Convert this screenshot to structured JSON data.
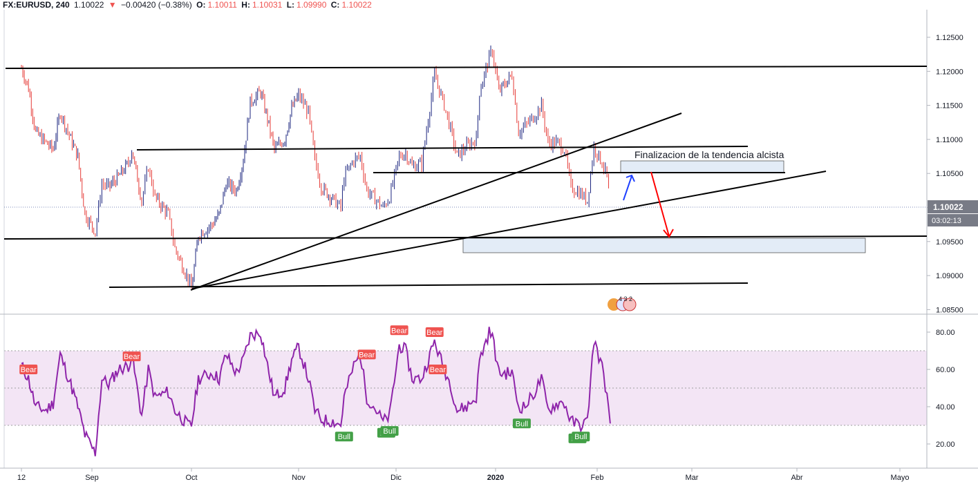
{
  "header": {
    "symbol": "FX:EURUSD, 240",
    "last": "1.10022",
    "arrow": "▼",
    "change": "−0.00420 (−0.38%)",
    "o_label": "O:",
    "o_value": "1.10011",
    "h_label": "H:",
    "h_value": "1.10031",
    "l_label": "L:",
    "l_value": "1.09990",
    "c_label": "C:",
    "c_value": "1.10022"
  },
  "chart_data": [
    {
      "type": "candlestick",
      "title": "",
      "y_ticks": [
        "1.12500",
        "1.12000",
        "1.11500",
        "1.11000",
        "1.10500",
        "1.10000",
        "1.09500",
        "1.09000",
        "1.08500"
      ],
      "ylim": [
        1.0845,
        1.129
      ],
      "x_ticks": [
        "12",
        "Sep",
        "Oct",
        "Nov",
        "Dic",
        "2020",
        "Feb",
        "Mar",
        "Abr",
        "Mayo"
      ],
      "last_price": "1.10022",
      "countdown": "03:02:13",
      "series": [
        {
          "values": [
            {
              "d": "2019-08-12",
              "c": 1.1205
            },
            {
              "d": "2019-08-14",
              "c": 1.1175
            },
            {
              "d": "2019-08-16",
              "c": 1.111
            },
            {
              "d": "2019-08-19",
              "c": 1.1095
            },
            {
              "d": "2019-08-21",
              "c": 1.1085
            },
            {
              "d": "2019-08-23",
              "c": 1.114
            },
            {
              "d": "2019-08-26",
              "c": 1.11
            },
            {
              "d": "2019-08-28",
              "c": 1.1075
            },
            {
              "d": "2019-08-30",
              "c": 1.099
            },
            {
              "d": "2019-09-02",
              "c": 1.0965
            },
            {
              "d": "2019-09-04",
              "c": 1.1035
            },
            {
              "d": "2019-09-06",
              "c": 1.103
            },
            {
              "d": "2019-09-09",
              "c": 1.1045
            },
            {
              "d": "2019-09-12",
              "c": 1.1065
            },
            {
              "d": "2019-09-13",
              "c": 1.1085
            },
            {
              "d": "2019-09-16",
              "c": 1.101
            },
            {
              "d": "2019-09-18",
              "c": 1.106
            },
            {
              "d": "2019-09-20",
              "c": 1.1015
            },
            {
              "d": "2019-09-24",
              "c": 1.099
            },
            {
              "d": "2019-09-26",
              "c": 1.094
            },
            {
              "d": "2019-09-30",
              "c": 1.0895
            },
            {
              "d": "2019-10-01",
              "c": 1.088
            },
            {
              "d": "2019-10-03",
              "c": 1.096
            },
            {
              "d": "2019-10-07",
              "c": 1.0975
            },
            {
              "d": "2019-10-09",
              "c": 1.099
            },
            {
              "d": "2019-10-11",
              "c": 1.1035
            },
            {
              "d": "2019-10-14",
              "c": 1.1025
            },
            {
              "d": "2019-10-16",
              "c": 1.107
            },
            {
              "d": "2019-10-18",
              "c": 1.1155
            },
            {
              "d": "2019-10-21",
              "c": 1.117
            },
            {
              "d": "2019-10-23",
              "c": 1.113
            },
            {
              "d": "2019-10-25",
              "c": 1.1085
            },
            {
              "d": "2019-10-28",
              "c": 1.11
            },
            {
              "d": "2019-10-30",
              "c": 1.1145
            },
            {
              "d": "2019-11-01",
              "c": 1.1165
            },
            {
              "d": "2019-11-04",
              "c": 1.114
            },
            {
              "d": "2019-11-06",
              "c": 1.107
            },
            {
              "d": "2019-11-08",
              "c": 1.103
            },
            {
              "d": "2019-11-12",
              "c": 1.101
            },
            {
              "d": "2019-11-14",
              "c": 1.1
            },
            {
              "d": "2019-11-15",
              "c": 1.1045
            },
            {
              "d": "2019-11-18",
              "c": 1.107
            },
            {
              "d": "2019-11-20",
              "c": 1.1075
            },
            {
              "d": "2019-11-22",
              "c": 1.1025
            },
            {
              "d": "2019-11-25",
              "c": 1.101
            },
            {
              "d": "2019-11-27",
              "c": 1.1
            },
            {
              "d": "2019-11-29",
              "c": 1.1015
            },
            {
              "d": "2019-12-02",
              "c": 1.1075
            },
            {
              "d": "2019-12-04",
              "c": 1.108
            },
            {
              "d": "2019-12-06",
              "c": 1.106
            },
            {
              "d": "2019-12-09",
              "c": 1.1065
            },
            {
              "d": "2019-12-11",
              "c": 1.113
            },
            {
              "d": "2019-12-13",
              "c": 1.1195
            },
            {
              "d": "2019-12-16",
              "c": 1.115
            },
            {
              "d": "2019-12-18",
              "c": 1.1115
            },
            {
              "d": "2019-12-20",
              "c": 1.1075
            },
            {
              "d": "2019-12-23",
              "c": 1.109
            },
            {
              "d": "2019-12-26",
              "c": 1.11
            },
            {
              "d": "2019-12-27",
              "c": 1.117
            },
            {
              "d": "2019-12-30",
              "c": 1.122
            },
            {
              "d": "2019-12-31",
              "c": 1.123
            },
            {
              "d": "2020-01-02",
              "c": 1.117
            },
            {
              "d": "2020-01-06",
              "c": 1.1195
            },
            {
              "d": "2020-01-08",
              "c": 1.111
            },
            {
              "d": "2020-01-10",
              "c": 1.112
            },
            {
              "d": "2020-01-13",
              "c": 1.1135
            },
            {
              "d": "2020-01-15",
              "c": 1.115
            },
            {
              "d": "2020-01-17",
              "c": 1.1095
            },
            {
              "d": "2020-01-20",
              "c": 1.1095
            },
            {
              "d": "2020-01-22",
              "c": 1.1085
            },
            {
              "d": "2020-01-24",
              "c": 1.103
            },
            {
              "d": "2020-01-27",
              "c": 1.102
            },
            {
              "d": "2020-01-29",
              "c": 1.101
            },
            {
              "d": "2020-01-31",
              "c": 1.109
            },
            {
              "d": "2020-02-03",
              "c": 1.106
            },
            {
              "d": "2020-02-04",
              "c": 1.1045
            },
            {
              "d": "2020-02-05",
              "c": 1.1002
            }
          ]
        }
      ],
      "annotation": "Finalizacion de la tendencia alcista"
    },
    {
      "type": "line",
      "name": "",
      "y_ticks": [
        "80.00",
        "60.00",
        "40.00",
        "20.00"
      ],
      "ylim": [
        10,
        86
      ],
      "band": [
        30,
        70
      ],
      "midline": 50,
      "series": [
        {
          "values": [
            {
              "d": "2019-08-12",
              "v": 62
            },
            {
              "d": "2019-08-14",
              "v": 55
            },
            {
              "d": "2019-08-16",
              "v": 40
            },
            {
              "d": "2019-08-19",
              "v": 38
            },
            {
              "d": "2019-08-21",
              "v": 42
            },
            {
              "d": "2019-08-23",
              "v": 68
            },
            {
              "d": "2019-08-26",
              "v": 52
            },
            {
              "d": "2019-08-28",
              "v": 40
            },
            {
              "d": "2019-08-30",
              "v": 25
            },
            {
              "d": "2019-09-02",
              "v": 15
            },
            {
              "d": "2019-09-04",
              "v": 55
            },
            {
              "d": "2019-09-06",
              "v": 52
            },
            {
              "d": "2019-09-09",
              "v": 60
            },
            {
              "d": "2019-09-12",
              "v": 62
            },
            {
              "d": "2019-09-13",
              "v": 68
            },
            {
              "d": "2019-09-16",
              "v": 35
            },
            {
              "d": "2019-09-18",
              "v": 60
            },
            {
              "d": "2019-09-20",
              "v": 45
            },
            {
              "d": "2019-09-24",
              "v": 48
            },
            {
              "d": "2019-09-26",
              "v": 38
            },
            {
              "d": "2019-09-30",
              "v": 30
            },
            {
              "d": "2019-10-01",
              "v": 30
            },
            {
              "d": "2019-10-03",
              "v": 55
            },
            {
              "d": "2019-10-07",
              "v": 58
            },
            {
              "d": "2019-10-09",
              "v": 55
            },
            {
              "d": "2019-10-11",
              "v": 68
            },
            {
              "d": "2019-10-14",
              "v": 58
            },
            {
              "d": "2019-10-16",
              "v": 65
            },
            {
              "d": "2019-10-18",
              "v": 78
            },
            {
              "d": "2019-10-21",
              "v": 80
            },
            {
              "d": "2019-10-23",
              "v": 62
            },
            {
              "d": "2019-10-25",
              "v": 45
            },
            {
              "d": "2019-10-28",
              "v": 50
            },
            {
              "d": "2019-10-30",
              "v": 65
            },
            {
              "d": "2019-11-01",
              "v": 72
            },
            {
              "d": "2019-11-04",
              "v": 55
            },
            {
              "d": "2019-11-06",
              "v": 38
            },
            {
              "d": "2019-11-08",
              "v": 33
            },
            {
              "d": "2019-11-12",
              "v": 32
            },
            {
              "d": "2019-11-14",
              "v": 30
            },
            {
              "d": "2019-11-15",
              "v": 45
            },
            {
              "d": "2019-11-18",
              "v": 62
            },
            {
              "d": "2019-11-20",
              "v": 68
            },
            {
              "d": "2019-11-22",
              "v": 45
            },
            {
              "d": "2019-11-25",
              "v": 38
            },
            {
              "d": "2019-11-27",
              "v": 32
            },
            {
              "d": "2019-11-29",
              "v": 35
            },
            {
              "d": "2019-12-02",
              "v": 73
            },
            {
              "d": "2019-12-04",
              "v": 70
            },
            {
              "d": "2019-12-06",
              "v": 55
            },
            {
              "d": "2019-12-09",
              "v": 55
            },
            {
              "d": "2019-12-11",
              "v": 65
            },
            {
              "d": "2019-12-13",
              "v": 75
            },
            {
              "d": "2019-12-16",
              "v": 60
            },
            {
              "d": "2019-12-18",
              "v": 52
            },
            {
              "d": "2019-12-20",
              "v": 38
            },
            {
              "d": "2019-12-23",
              "v": 40
            },
            {
              "d": "2019-12-26",
              "v": 45
            },
            {
              "d": "2019-12-27",
              "v": 65
            },
            {
              "d": "2019-12-30",
              "v": 80
            },
            {
              "d": "2019-12-31",
              "v": 78
            },
            {
              "d": "2020-01-02",
              "v": 58
            },
            {
              "d": "2020-01-06",
              "v": 58
            },
            {
              "d": "2020-01-08",
              "v": 40
            },
            {
              "d": "2020-01-10",
              "v": 40
            },
            {
              "d": "2020-01-13",
              "v": 48
            },
            {
              "d": "2020-01-15",
              "v": 55
            },
            {
              "d": "2020-01-17",
              "v": 38
            },
            {
              "d": "2020-01-20",
              "v": 42
            },
            {
              "d": "2020-01-22",
              "v": 42
            },
            {
              "d": "2020-01-24",
              "v": 32
            },
            {
              "d": "2020-01-27",
              "v": 30
            },
            {
              "d": "2020-01-29",
              "v": 32
            },
            {
              "d": "2020-01-31",
              "v": 76
            },
            {
              "d": "2020-02-03",
              "v": 58
            },
            {
              "d": "2020-02-04",
              "v": 45
            },
            {
              "d": "2020-02-05",
              "v": 31
            }
          ]
        }
      ],
      "signals": [
        {
          "text": "Bear",
          "d": "2019-08-14",
          "v": 60
        },
        {
          "text": "Bear",
          "d": "2019-09-13",
          "v": 67
        },
        {
          "text": "Bull",
          "d": "2019-11-15",
          "v": 24
        },
        {
          "text": "Bear",
          "d": "2019-11-22",
          "v": 68
        },
        {
          "text": "Bull",
          "d": "2019-11-28",
          "v": 26
        },
        {
          "text": "Bull",
          "d": "2019-11-29",
          "v": 27
        },
        {
          "text": "Bear",
          "d": "2019-12-02",
          "v": 81
        },
        {
          "text": "Bear",
          "d": "2019-12-13",
          "v": 80
        },
        {
          "text": "Bear",
          "d": "2019-12-14",
          "v": 60
        },
        {
          "text": "Bull",
          "d": "2020-01-09",
          "v": 31
        },
        {
          "text": "Bull",
          "d": "2020-01-26",
          "v": 23
        },
        {
          "text": "Bull",
          "d": "2020-01-27",
          "v": 24
        }
      ]
    }
  ],
  "event_badge": "4 3 2",
  "colors": {
    "up": "#1a237e",
    "down": "#e53935",
    "rsi_line": "#8e24aa",
    "rsi_band": "#f3e5f5",
    "bear_label": "#ef5350",
    "bull_label": "#43a047",
    "price_label_bg": "#787b86",
    "zone_fill": "#e3ecf7",
    "arrow_up": "#1e40ff",
    "arrow_down": "#ff0000"
  }
}
